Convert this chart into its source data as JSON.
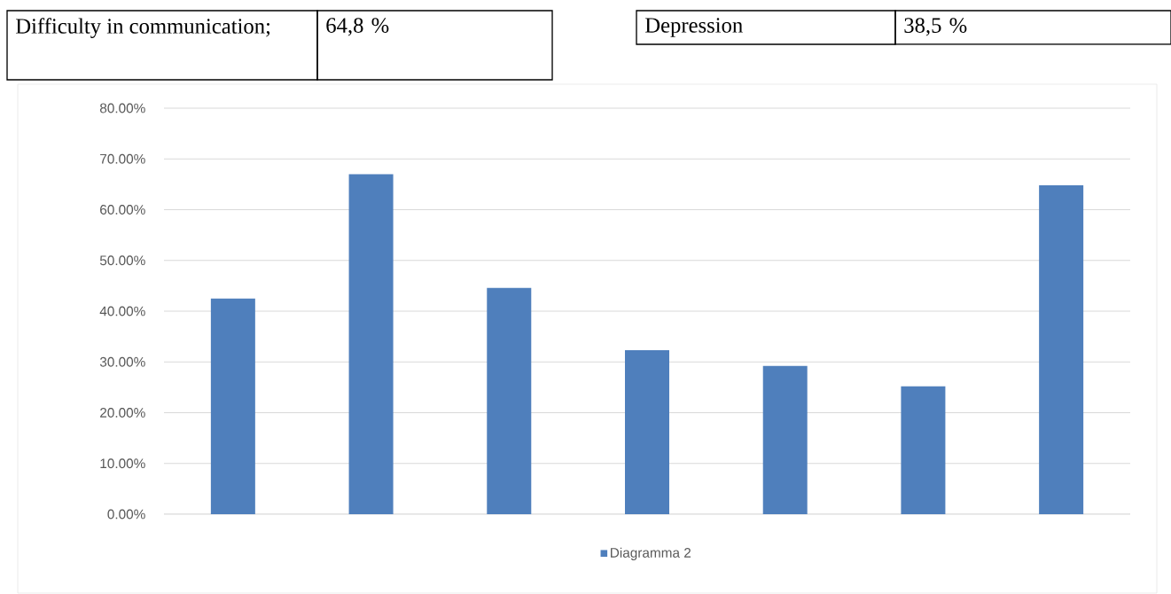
{
  "chart_data": {
    "type": "bar",
    "categories": [
      null,
      null,
      null,
      null,
      null,
      null,
      null
    ],
    "series": [
      {
        "name": "Diagramma 2",
        "color": "#4f7fbc",
        "values": [
          42.5,
          67,
          44.6,
          32.3,
          29.2,
          25.2,
          64.8
        ]
      }
    ],
    "ylim": [
      0,
      80
    ],
    "yticks": [
      {
        "value": 0,
        "label": "0.00%"
      },
      {
        "value": 10,
        "label": "10.00%"
      },
      {
        "value": 20,
        "label": "20.00%"
      },
      {
        "value": 30,
        "label": "30.00%"
      },
      {
        "value": 40,
        "label": "40.00%"
      },
      {
        "value": 50,
        "label": "50.00%"
      },
      {
        "value": 60,
        "label": "60.00%"
      },
      {
        "value": 70,
        "label": "70.00%"
      },
      {
        "value": 80,
        "label": "80.00%"
      }
    ],
    "grid": "y",
    "legend": "bottom",
    "annotations": [
      "Difficulty in communication;",
      "64,8 %",
      "Depression",
      "38,5 %"
    ]
  }
}
